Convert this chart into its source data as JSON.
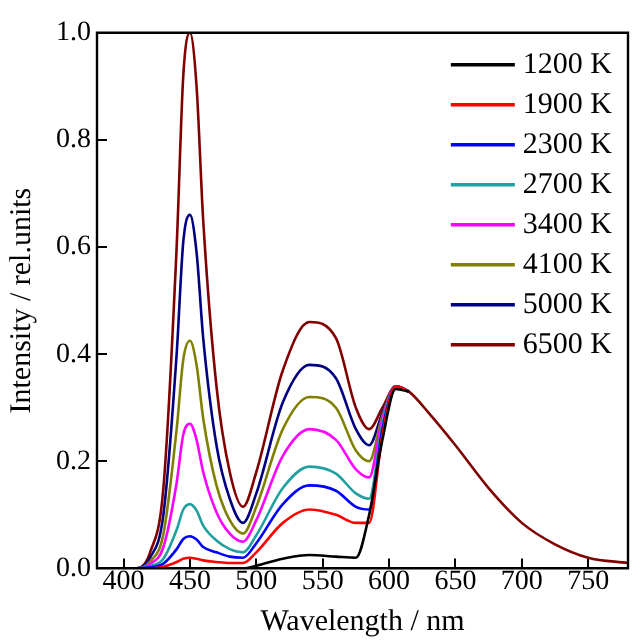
{
  "chart_data": {
    "type": "line",
    "xlabel": "Wavelength / nm",
    "ylabel": "Intensity / rel.units",
    "x": [
      380,
      410,
      420,
      430,
      440,
      445,
      450,
      455,
      460,
      470,
      480,
      490,
      500,
      520,
      540,
      560,
      575,
      585,
      595,
      605,
      615,
      630,
      650,
      675,
      700,
      725,
      750,
      780
    ],
    "xlim": [
      380,
      780
    ],
    "xticks": [
      400,
      450,
      500,
      550,
      600,
      650,
      700,
      750
    ],
    "ylim": [
      0,
      1.0
    ],
    "yticks": [
      {
        "value": 0,
        "label": "0.0"
      },
      {
        "value": 0.2,
        "label": "0.2"
      },
      {
        "value": 0.4,
        "label": "0.4"
      },
      {
        "value": 0.6,
        "label": "0.6"
      },
      {
        "value": 0.8,
        "label": "0.8"
      },
      {
        "value": 1.0,
        "label": "1.0"
      }
    ],
    "legend": "top right",
    "series": [
      {
        "name": "1200 K",
        "color": "#000000",
        "values": [
          0,
          0,
          0,
          0,
          0,
          0,
          0,
          0,
          0,
          0,
          0,
          0,
          0.005,
          0.018,
          0.025,
          0.022,
          0.02,
          0.1,
          0.24,
          0.335,
          0.33,
          null,
          null,
          null,
          null,
          null,
          null,
          null
        ]
      },
      {
        "name": "1900 K",
        "color": "#ff0000",
        "values": [
          0,
          0,
          0,
          0.003,
          0.012,
          0.018,
          0.02,
          0.018,
          0.015,
          0.012,
          0.01,
          0.01,
          0.03,
          0.085,
          0.11,
          0.1,
          0.085,
          0.085,
          0.25,
          0.34,
          0.33,
          null,
          null,
          null,
          null,
          null,
          null,
          null
        ]
      },
      {
        "name": "2300 K",
        "color": "#0000ff",
        "values": [
          0,
          0,
          0.002,
          0.009,
          0.036,
          0.055,
          0.06,
          0.054,
          0.04,
          0.03,
          0.022,
          0.02,
          0.047,
          0.12,
          0.155,
          0.145,
          0.115,
          0.11,
          0.26,
          0.34,
          0.33,
          null,
          null,
          null,
          null,
          null,
          null,
          null
        ]
      },
      {
        "name": "2700 K",
        "color": "#20a0a0",
        "values": [
          0,
          0,
          0.004,
          0.018,
          0.072,
          0.11,
          0.12,
          0.108,
          0.08,
          0.052,
          0.036,
          0.03,
          0.062,
          0.15,
          0.19,
          0.177,
          0.14,
          0.13,
          0.27,
          0.34,
          0.33,
          null,
          null,
          null,
          null,
          null,
          null,
          null
        ]
      },
      {
        "name": "3400 K",
        "color": "#ff00ff",
        "values": [
          0,
          0,
          0.008,
          0.04,
          0.16,
          0.25,
          0.27,
          0.24,
          0.18,
          0.105,
          0.065,
          0.05,
          0.09,
          0.21,
          0.26,
          0.24,
          0.185,
          0.17,
          0.28,
          0.34,
          0.33,
          null,
          null,
          null,
          null,
          null,
          null,
          null
        ]
      },
      {
        "name": "4100 K",
        "color": "#808000",
        "values": [
          0,
          0,
          0.013,
          0.064,
          0.26,
          0.39,
          0.425,
          0.38,
          0.28,
          0.155,
          0.09,
          0.065,
          0.115,
          0.26,
          0.32,
          0.3,
          0.22,
          0.2,
          0.285,
          0.34,
          0.33,
          null,
          null,
          null,
          null,
          null,
          null,
          null
        ]
      },
      {
        "name": "5000 K",
        "color": "#000080",
        "values": [
          0,
          0,
          0.02,
          0.1,
          0.4,
          0.61,
          0.66,
          0.59,
          0.43,
          0.23,
          0.13,
          0.085,
          0.14,
          0.31,
          0.38,
          0.355,
          0.26,
          0.23,
          0.29,
          0.34,
          0.33,
          null,
          null,
          null,
          null,
          null,
          null,
          null
        ]
      },
      {
        "name": "6500 K",
        "color": "#800000",
        "values": [
          0,
          0,
          0.03,
          0.15,
          0.6,
          0.92,
          1.0,
          0.9,
          0.65,
          0.34,
          0.18,
          0.115,
          0.18,
          0.37,
          0.46,
          0.43,
          0.3,
          0.26,
          0.3,
          0.34,
          0.33,
          0.29,
          0.23,
          0.15,
          0.085,
          0.045,
          0.02,
          0.01
        ]
      }
    ]
  }
}
